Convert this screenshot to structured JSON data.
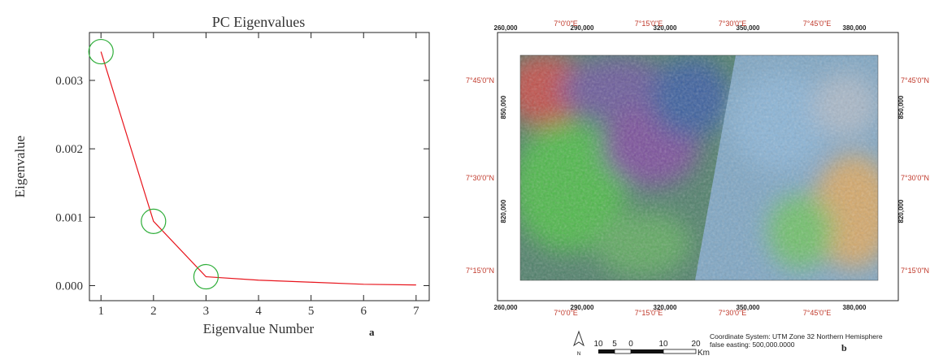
{
  "chart_data": {
    "type": "line",
    "title": "PC Eigenvalues",
    "x_label": "Eigenvalue Number",
    "y_label": "Eigenvalue",
    "x": [
      1,
      2,
      3,
      4,
      5,
      6,
      7
    ],
    "series": [
      {
        "color": "#e8141c",
        "values": [
          0.00342,
          0.00094,
          0.00013,
          8e-05,
          5e-05,
          2e-05,
          1e-05
        ]
      }
    ],
    "circled": [
      1,
      2,
      3
    ],
    "circle_color": "#2fae3a",
    "xlim": [
      0.78,
      7.25
    ],
    "xticks": [
      1,
      2,
      3,
      4,
      5,
      6,
      7
    ],
    "ylim": [
      -0.00022,
      0.0037
    ],
    "yticks": [
      {
        "value": 0,
        "label": "0.000"
      },
      {
        "value": 0.001,
        "label": "0.001"
      },
      {
        "value": 0.002,
        "label": "0.002"
      },
      {
        "value": 0.003,
        "label": "0.003"
      }
    ],
    "panel": "a"
  },
  "map": {
    "panel": "b",
    "top_eastings": [
      "260,000",
      "290,000",
      "320,000",
      "350,000",
      "380,000"
    ],
    "top_longitudes": [
      "7°0'0\"E",
      "7°15'0\"E",
      "7°30'0\"E",
      "7°45'0\"E"
    ],
    "bottom_eastings": [
      "260,000",
      "290,000",
      "320,000",
      "350,000",
      "380,000"
    ],
    "bottom_longitudes": [
      "7°0'0\"E",
      "7°15'0\"E",
      "7°30'0\"E",
      "7°45'0\"E"
    ],
    "left_latitudes": [
      "7°45'0\"N",
      "7°30'0\"N",
      "7°15'0\"N"
    ],
    "left_northings": [
      "850,000",
      "820,000"
    ],
    "right_latitudes": [
      "7°45'0\"N",
      "7°30'0\"N",
      "7°15'0\"N"
    ],
    "right_northings": [
      "850,000",
      "820,000"
    ],
    "north": "N",
    "scale_numbers": [
      "10",
      "5",
      "0",
      "10",
      "20"
    ],
    "scale_unit": "Km",
    "coordinate_system": [
      "Coordinate System: UTM Zone 32 Northern Hemisphere",
      "false easting: 500,000.0000"
    ]
  }
}
